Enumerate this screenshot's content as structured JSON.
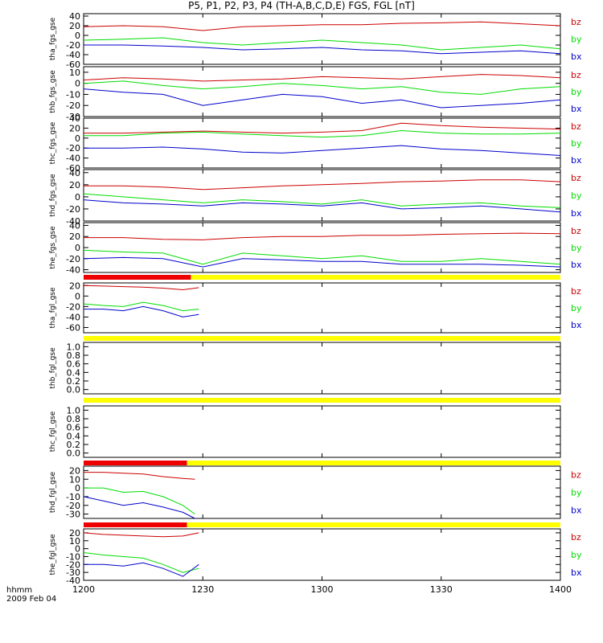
{
  "title": "P5, P1, P2, P3, P4 (TH-A,B,C,D,E) FGS, FGL [nT]",
  "time_axis": {
    "label_line1": "hhmm",
    "label_line2": "2009 Feb 04",
    "ticks": [
      "1200",
      "1230",
      "1300",
      "1330",
      "1400"
    ]
  },
  "colors": {
    "bx": "#0000cc",
    "by": "#00dd00",
    "bz": "#cc0000",
    "bar_red": "#ee0000",
    "bar_yellow": "#ffff00",
    "bar_black": "#000000"
  },
  "chart_data": {
    "type": "line",
    "x_unit": "minutes after 12:00 UT",
    "x_range": [
      0,
      120
    ],
    "panels": [
      {
        "id": "tha_fgs",
        "ylabel": "tha_fgs_gse",
        "ylim": [
          -60,
          45
        ],
        "yticks": [
          "40",
          "20",
          "0",
          "-20",
          "-40",
          "-60"
        ],
        "series": [
          {
            "name": "bz",
            "x": [
              0,
              10,
              20,
              30,
              40,
              50,
              60,
              70,
              80,
              90,
              100,
              110,
              120
            ],
            "y": [
              18,
              20,
              18,
              10,
              18,
              20,
              22,
              22,
              25,
              26,
              28,
              24,
              20
            ]
          },
          {
            "name": "by",
            "x": [
              0,
              10,
              20,
              30,
              40,
              50,
              60,
              70,
              80,
              90,
              100,
              110,
              120
            ],
            "y": [
              -10,
              -8,
              -5,
              -15,
              -20,
              -15,
              -10,
              -15,
              -20,
              -30,
              -25,
              -20,
              -28
            ]
          },
          {
            "name": "bx",
            "x": [
              0,
              10,
              20,
              30,
              40,
              50,
              60,
              70,
              80,
              90,
              100,
              110,
              120
            ],
            "y": [
              -20,
              -20,
              -22,
              -25,
              -30,
              -28,
              -25,
              -30,
              -32,
              -38,
              -35,
              -32,
              -38
            ]
          }
        ]
      },
      {
        "id": "thb_fgs",
        "ylabel": "thb_fgs_gse",
        "ylim": [
          -30,
          15
        ],
        "yticks": [
          "10",
          "0",
          "-10",
          "-20",
          "-30"
        ],
        "series": [
          {
            "name": "bz",
            "x": [
              0,
              10,
              20,
              30,
              40,
              50,
              60,
              70,
              80,
              90,
              100,
              110,
              120
            ],
            "y": [
              3,
              5,
              4,
              2,
              3,
              4,
              6,
              5,
              4,
              6,
              8,
              7,
              5
            ]
          },
          {
            "name": "by",
            "x": [
              0,
              10,
              20,
              30,
              40,
              50,
              60,
              70,
              80,
              90,
              100,
              110,
              120
            ],
            "y": [
              0,
              2,
              -2,
              -5,
              -3,
              0,
              -2,
              -5,
              -3,
              -8,
              -10,
              -5,
              -3
            ]
          },
          {
            "name": "bx",
            "x": [
              0,
              10,
              20,
              30,
              40,
              50,
              60,
              70,
              80,
              90,
              100,
              110,
              120
            ],
            "y": [
              -5,
              -8,
              -10,
              -20,
              -15,
              -10,
              -12,
              -18,
              -15,
              -22,
              -20,
              -18,
              -15
            ]
          }
        ]
      },
      {
        "id": "thc_fgs",
        "ylabel": "thc_fgs_gse",
        "ylim": [
          -60,
          40
        ],
        "yticks": [
          "40",
          "20",
          "0",
          "-20",
          "-40",
          "-60"
        ],
        "series": [
          {
            "name": "bz",
            "x": [
              0,
              10,
              20,
              30,
              40,
              50,
              60,
              70,
              80,
              90,
              100,
              110,
              120
            ],
            "y": [
              10,
              10,
              12,
              14,
              12,
              10,
              12,
              15,
              30,
              25,
              22,
              20,
              18
            ]
          },
          {
            "name": "by",
            "x": [
              0,
              10,
              20,
              30,
              40,
              50,
              60,
              70,
              80,
              90,
              100,
              110,
              120
            ],
            "y": [
              5,
              5,
              10,
              12,
              8,
              5,
              2,
              5,
              15,
              10,
              8,
              8,
              10
            ]
          },
          {
            "name": "bx",
            "x": [
              0,
              10,
              20,
              30,
              40,
              50,
              60,
              70,
              80,
              90,
              100,
              110,
              120
            ],
            "y": [
              -20,
              -20,
              -18,
              -22,
              -28,
              -30,
              -25,
              -20,
              -15,
              -22,
              -25,
              -30,
              -35
            ]
          }
        ]
      },
      {
        "id": "thd_fgs",
        "ylabel": "thd_fgs_gse",
        "ylim": [
          -40,
          45
        ],
        "yticks": [
          "40",
          "20",
          "0",
          "-20",
          "-40"
        ],
        "series": [
          {
            "name": "bz",
            "x": [
              0,
              10,
              20,
              30,
              40,
              50,
              60,
              70,
              80,
              90,
              100,
              110,
              120
            ],
            "y": [
              18,
              18,
              16,
              12,
              15,
              18,
              20,
              22,
              25,
              26,
              28,
              28,
              25
            ]
          },
          {
            "name": "by",
            "x": [
              0,
              10,
              20,
              30,
              40,
              50,
              60,
              70,
              80,
              90,
              100,
              110,
              120
            ],
            "y": [
              5,
              0,
              -5,
              -10,
              -5,
              -8,
              -12,
              -5,
              -15,
              -12,
              -10,
              -15,
              -18
            ]
          },
          {
            "name": "bx",
            "x": [
              0,
              10,
              20,
              30,
              40,
              50,
              60,
              70,
              80,
              90,
              100,
              110,
              120
            ],
            "y": [
              -5,
              -10,
              -12,
              -15,
              -10,
              -12,
              -15,
              -10,
              -20,
              -18,
              -15,
              -20,
              -25
            ]
          }
        ]
      },
      {
        "id": "the_fgs",
        "ylabel": "the_fgs_gse",
        "ylim": [
          -45,
          45
        ],
        "yticks": [
          "40",
          "20",
          "0",
          "-20",
          "-40"
        ],
        "series": [
          {
            "name": "bz",
            "x": [
              0,
              10,
              20,
              30,
              40,
              50,
              60,
              70,
              80,
              90,
              100,
              110,
              120
            ],
            "y": [
              18,
              18,
              15,
              14,
              18,
              20,
              20,
              22,
              22,
              24,
              25,
              26,
              25
            ]
          },
          {
            "name": "by",
            "x": [
              0,
              10,
              20,
              30,
              40,
              50,
              60,
              70,
              80,
              90,
              100,
              110,
              120
            ],
            "y": [
              -5,
              -8,
              -10,
              -30,
              -10,
              -15,
              -20,
              -15,
              -25,
              -25,
              -20,
              -25,
              -30
            ]
          },
          {
            "name": "bx",
            "x": [
              0,
              10,
              20,
              30,
              40,
              50,
              60,
              70,
              80,
              90,
              100,
              110,
              120
            ],
            "y": [
              -20,
              -18,
              -20,
              -35,
              -20,
              -22,
              -25,
              -25,
              -30,
              -30,
              -30,
              -32,
              -35
            ]
          }
        ]
      },
      {
        "id": "tha_fgl",
        "ylabel": "tha_fgl_gse",
        "ylim": [
          -70,
          25
        ],
        "yticks": [
          "20",
          "0",
          "-20",
          "-40",
          "-60"
        ],
        "series": [
          {
            "name": "bz",
            "x": [
              0,
              5,
              10,
              15,
              20,
              25,
              29
            ],
            "y": [
              20,
              19,
              18,
              17,
              15,
              12,
              16
            ]
          },
          {
            "name": "by",
            "x": [
              0,
              5,
              10,
              15,
              20,
              25,
              29
            ],
            "y": [
              -15,
              -18,
              -20,
              -12,
              -18,
              -28,
              -25
            ]
          },
          {
            "name": "bx",
            "x": [
              0,
              5,
              10,
              15,
              20,
              25,
              29
            ],
            "y": [
              -25,
              -25,
              -28,
              -20,
              -28,
              -40,
              -35
            ]
          }
        ]
      },
      {
        "id": "thb_fgl",
        "ylabel": "thb_fgl_gse",
        "ylim": [
          -0.1,
          1.1
        ],
        "yticks": [
          "1.0",
          "0.8",
          "0.6",
          "0.4",
          "0.2",
          "0.0"
        ],
        "series": []
      },
      {
        "id": "thc_fgl",
        "ylabel": "thc_fgl_gse",
        "ylim": [
          -0.1,
          1.1
        ],
        "yticks": [
          "1.0",
          "0.8",
          "0.6",
          "0.4",
          "0.2",
          "0.0"
        ],
        "series": []
      },
      {
        "id": "thd_fgl",
        "ylabel": "thd_fgl_gse",
        "ylim": [
          -35,
          25
        ],
        "yticks": [
          "20",
          "10",
          "0",
          "-10",
          "-20",
          "-30"
        ],
        "series": [
          {
            "name": "bz",
            "x": [
              0,
              5,
              10,
              15,
              20,
              25,
              28
            ],
            "y": [
              18,
              18,
              17,
              16,
              13,
              11,
              10
            ]
          },
          {
            "name": "by",
            "x": [
              0,
              5,
              10,
              15,
              20,
              25,
              28
            ],
            "y": [
              0,
              0,
              -5,
              -4,
              -10,
              -20,
              -30
            ]
          },
          {
            "name": "bx",
            "x": [
              0,
              5,
              10,
              15,
              20,
              25,
              28
            ],
            "y": [
              -10,
              -15,
              -20,
              -17,
              -22,
              -28,
              -35
            ]
          }
        ]
      },
      {
        "id": "the_fgl",
        "ylabel": "the_fgl_gse",
        "ylim": [
          -40,
          25
        ],
        "yticks": [
          "20",
          "10",
          "0",
          "-10",
          "-20",
          "-30",
          "-40"
        ],
        "series": [
          {
            "name": "bz",
            "x": [
              0,
              5,
              10,
              15,
              20,
              25,
              29
            ],
            "y": [
              20,
              18,
              17,
              16,
              15,
              16,
              20
            ]
          },
          {
            "name": "by",
            "x": [
              0,
              5,
              10,
              15,
              20,
              25,
              29
            ],
            "y": [
              -5,
              -8,
              -10,
              -12,
              -20,
              -30,
              -25
            ]
          },
          {
            "name": "bx",
            "x": [
              0,
              5,
              10,
              15,
              20,
              25,
              29
            ],
            "y": [
              -20,
              -20,
              -22,
              -18,
              -25,
              -35,
              -20
            ]
          }
        ]
      }
    ],
    "status_bars": [
      {
        "after_panel": "the_fgs",
        "red_until": 27,
        "rest": "yellow"
      },
      {
        "after_panel": "tha_fgl",
        "red_until": 0,
        "rest": "yellow"
      },
      {
        "after_panel": "thb_fgl",
        "red_until": 0,
        "rest": "yellow"
      },
      {
        "after_panel": "thc_fgl",
        "red_until": 26,
        "rest": "yellow"
      },
      {
        "after_panel": "thd_fgl",
        "red_until": 26,
        "rest": "yellow"
      }
    ]
  }
}
